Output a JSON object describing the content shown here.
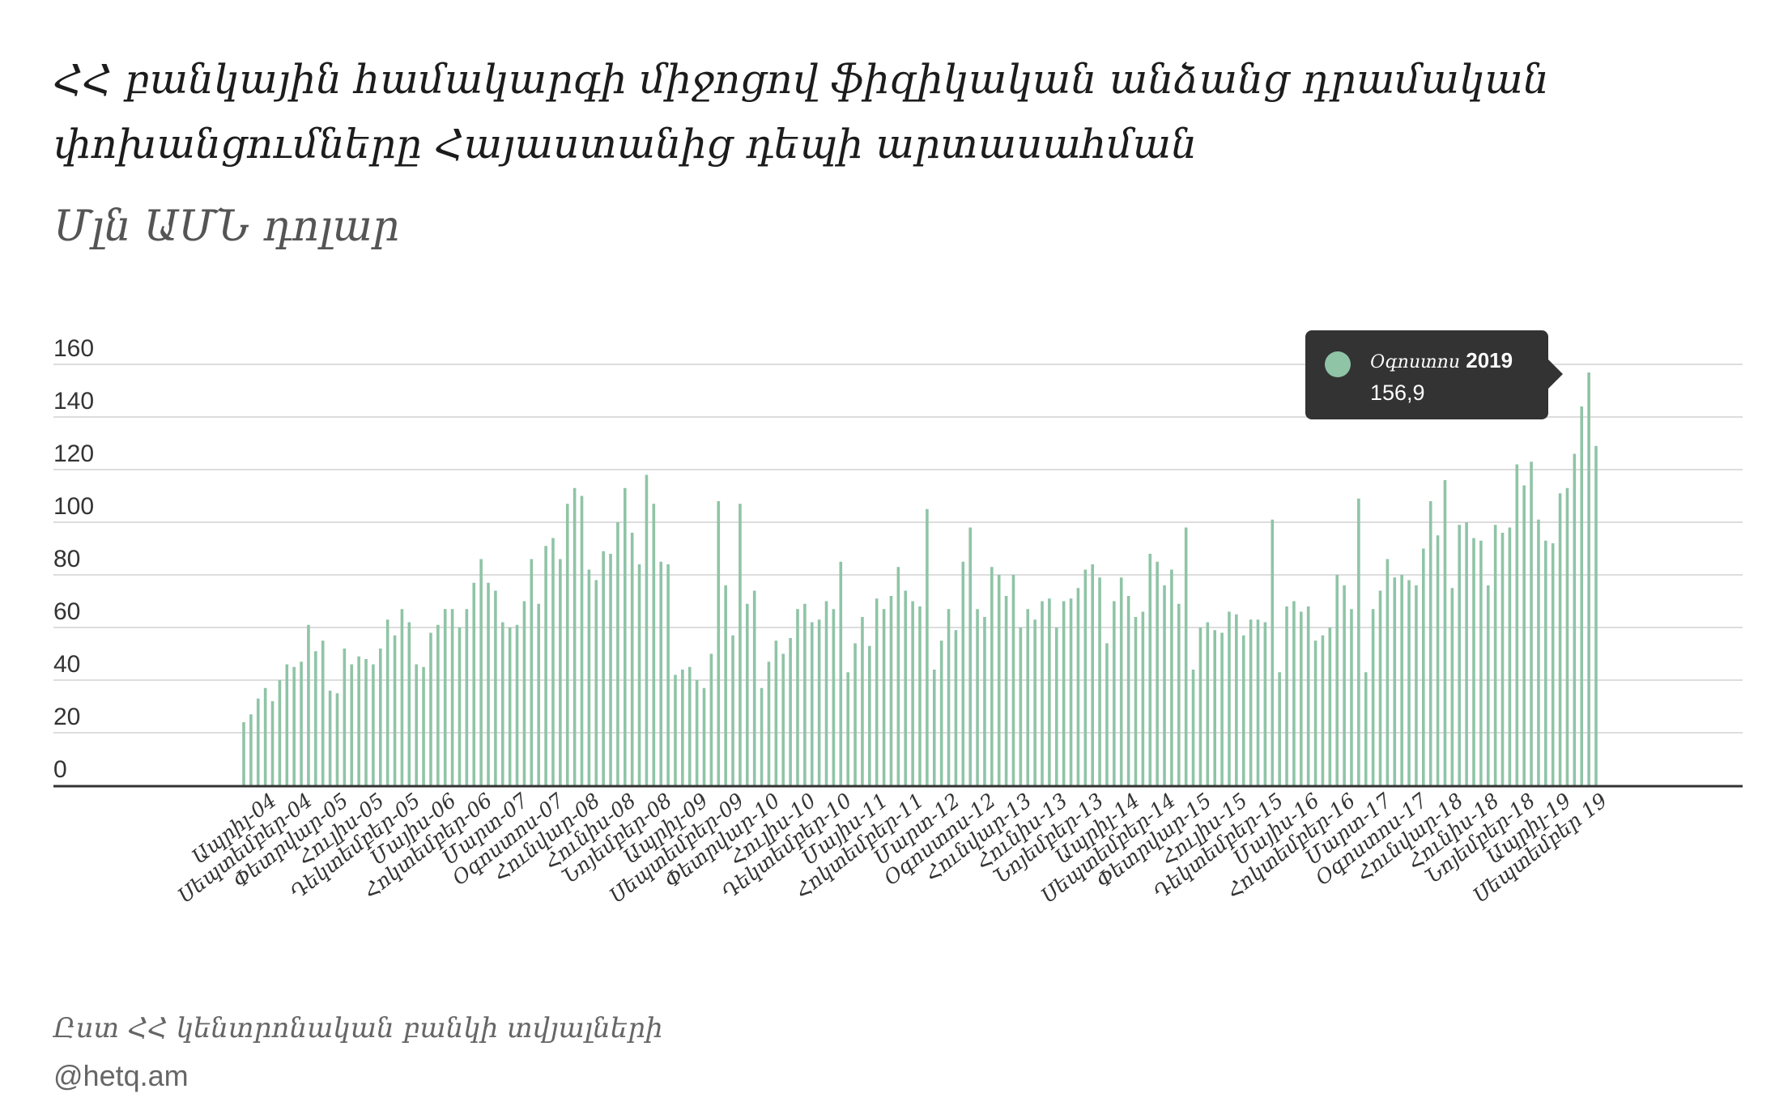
{
  "title": "ՀՀ բանկային համակարգի միջոցով ֆիզիկական անձանց դրամական փոխանցումները Հայաստանից դեպի արտասահման",
  "subtitle": "Մլն ԱՄՆ դոլար",
  "source": "Ըստ ՀՀ կենտրոնական բանկի տվյալների",
  "handle": "@hetq.am",
  "tooltip": {
    "month": "Օգոստոս",
    "year": "2019",
    "value": "156,9"
  },
  "colors": {
    "bar": "#8fc4a6",
    "tooltip_bg": "#333333",
    "grid": "#dddddd",
    "axis": "#333333"
  },
  "chart_data": {
    "type": "bar",
    "title": "ՀՀ բանկային համակարգի միջոցով ֆիզիկական անձանց դրամական փոխանցումները Հայաստանից դեպի արտասահման",
    "ylabel": "Մլն ԱՄՆ դոլար",
    "ylim": [
      0,
      160
    ],
    "yticks": [
      0,
      20,
      40,
      60,
      80,
      100,
      120,
      140,
      160
    ],
    "grid": true,
    "x_tick_labels": [
      "Ապրիլ-04",
      "Սեպտեմբեր-04",
      "Փետրվար-05",
      "Հուլիս-05",
      "Դեկտեմբեր-05",
      "Մայիս-06",
      "Հոկտեմբեր-06",
      "Մարտ-07",
      "Օգոստոս-07",
      "Հունվար-08",
      "Հունիս-08",
      "Նոյեմբեր-08",
      "Ապրիլ-09",
      "Սեպտեմբեր-09",
      "Փետրվար-10",
      "Հուլիս-10",
      "Դեկտեմբեր-10",
      "Մայիս-11",
      "Հոկտեմբեր-11",
      "Մարտ-12",
      "Օգոստոս-12",
      "Հունվար-13",
      "Հունիս-13",
      "Նոյեմբեր-13",
      "Ապրիլ-14",
      "Սեպտեմբեր-14",
      "Փետրվար-15",
      "Հուլիս-15",
      "Դեկտեմբեր-15",
      "Մայիս-16",
      "Հոկտեմբեր-16",
      "Մարտ-17",
      "Օգոստոս-17",
      "Հունվար-18",
      "Հունիս-18",
      "Նոյեմբեր-18",
      "Ապրիլ-19",
      "Սեպտեմբեր 19"
    ],
    "series": [
      {
        "values": [
          24,
          27,
          33,
          37,
          32,
          40,
          46,
          45,
          47,
          61,
          51,
          55,
          36,
          35,
          52,
          46,
          49,
          48,
          46,
          52,
          63,
          57,
          67,
          62,
          46,
          45,
          58,
          61,
          67,
          67,
          60,
          67,
          77,
          86,
          77,
          74,
          62,
          60,
          61,
          70,
          86,
          69,
          91,
          94,
          86,
          107,
          113,
          110,
          82,
          78,
          89,
          88,
          100,
          113,
          96,
          84,
          118,
          107,
          85,
          84,
          42,
          44,
          45,
          40,
          37,
          50,
          108,
          76,
          57,
          107,
          69,
          74,
          37,
          47,
          55,
          50,
          56,
          67,
          69,
          62,
          63,
          70,
          67,
          85,
          43,
          54,
          64,
          53,
          71,
          67,
          72,
          83,
          74,
          70,
          68,
          105,
          44,
          55,
          67,
          59,
          85,
          98,
          67,
          64,
          83,
          80,
          72,
          80,
          60,
          67,
          63,
          70,
          71,
          60,
          70,
          71,
          75,
          82,
          84,
          79,
          54,
          70,
          79,
          72,
          64,
          66,
          88,
          85,
          76,
          82,
          69,
          98,
          44,
          60,
          62,
          59,
          58,
          66,
          65,
          57,
          63,
          63,
          62,
          101,
          43,
          68,
          70,
          66,
          68,
          55,
          57,
          60,
          80,
          76,
          67,
          109,
          43,
          67,
          74,
          86,
          79,
          80,
          78,
          76,
          90,
          108,
          95,
          116,
          75,
          99,
          100,
          94,
          93,
          76,
          99,
          96,
          98,
          122,
          114,
          123,
          101,
          93,
          92,
          111,
          113,
          126,
          144,
          156.9,
          129
        ]
      }
    ]
  }
}
